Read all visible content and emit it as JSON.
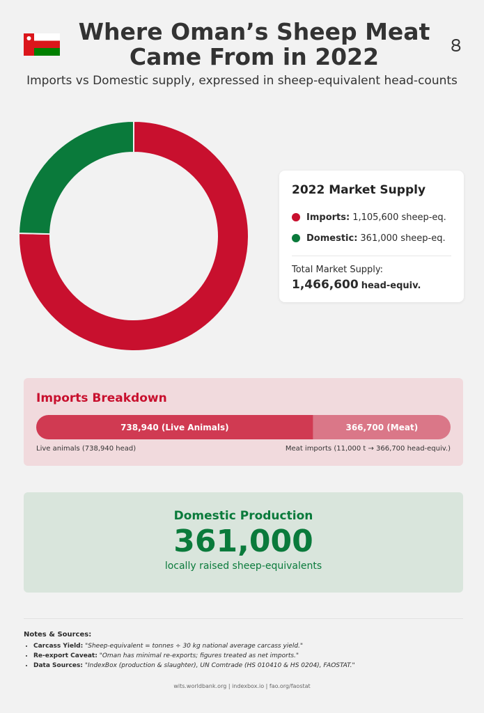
{
  "header": {
    "title": "Where Oman’s Sheep Meat Came From in 2022",
    "subtitle": "Imports vs Domestic supply, expressed in sheep-equivalent head-counts"
  },
  "chart_data": [
    {
      "type": "donut",
      "legend_title": "2022 Market Supply",
      "categories": [
        "Imports:",
        "Domestic:"
      ],
      "values": [
        1105600,
        361000
      ],
      "value_labels": [
        "1,105,600 sheep-eq.",
        "361,000 sheep-eq."
      ],
      "colors": [
        "#c8102e",
        "#0a7a3b"
      ],
      "total_caption": "Total Market Supply:",
      "total": 1466600,
      "total_label": "1,466,600",
      "total_unit": "head-equiv."
    },
    {
      "type": "stacked-bar",
      "title": "Imports Breakdown",
      "values": [
        738940,
        366700
      ],
      "value_labels": [
        "738,940 (Live Animals)",
        "366,700 (Meat)"
      ],
      "colors": [
        "#d03a52",
        "#da7788"
      ],
      "notes": [
        "Live animals (738,940 head)",
        "Meat imports (11,000 t → 366,700 head-equiv.)"
      ]
    }
  ],
  "domestic": {
    "title": "Domestic Production",
    "value": "361,000",
    "caption": "locally raised sheep-equivalents"
  },
  "notes": {
    "title": "Notes & Sources:",
    "items": [
      {
        "label": "Carcass Yield:",
        "text": "\"Sheep-equivalent = tonnes ÷ 30 kg national average carcass yield.\""
      },
      {
        "label": "Re-export Caveat:",
        "text": "\"Oman has minimal re-exports; figures treated as net imports.\""
      },
      {
        "label": "Data Sources:",
        "text": "\"IndexBox (production & slaughter), UN Comtrade (HS 010410 & HS 0204), FAOSTAT.\""
      }
    ]
  },
  "footer": "wits.worldbank.org | indexbox.io | fao.org/faostat"
}
